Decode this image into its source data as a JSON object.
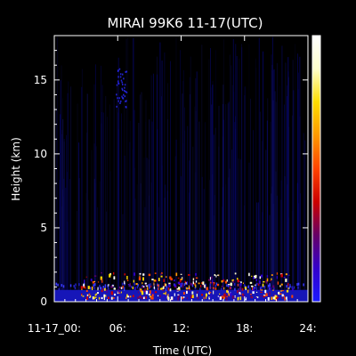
{
  "chart_data": {
    "type": "heatmap",
    "title": "MIRAI 99K6 11-17(UTC)",
    "xlabel": "Time (UTC)",
    "ylabel": "Height (km)",
    "xlim": [
      0,
      24
    ],
    "ylim": [
      0,
      18
    ],
    "x_ticks": [
      0,
      6,
      12,
      18,
      24
    ],
    "x_tick_labels": [
      "11-17_00:",
      "06:",
      "12:",
      "18:",
      "24:"
    ],
    "y_ticks": [
      0,
      5,
      10,
      15
    ],
    "y_tick_labels": [
      "0",
      "5",
      "10",
      "15"
    ],
    "colorbar": {
      "position": "right",
      "colors": [
        "#1a1aff",
        "#3300cc",
        "#660066",
        "#cc0000",
        "#ff4400",
        "#ff9900",
        "#ffdd00",
        "#ffffcc",
        "#ffffff"
      ]
    },
    "background_color": "#000000",
    "features": [
      {
        "name": "surface layer",
        "x_range": [
          0,
          24
        ],
        "height_range": [
          0,
          0.8
        ],
        "intensity": "low-medium"
      },
      {
        "name": "boundary-layer clouds",
        "x_range": [
          2.5,
          22.5
        ],
        "height_range": [
          0.3,
          2.0
        ],
        "intensity": "high"
      },
      {
        "name": "upper echo",
        "x_range": [
          5.8,
          6.8
        ],
        "height_range": [
          13.2,
          15.8
        ],
        "intensity": "low"
      },
      {
        "name": "vertical noise streaks",
        "x_range": [
          0,
          24
        ],
        "height_range": [
          0,
          18
        ],
        "intensity": "very low"
      }
    ]
  }
}
